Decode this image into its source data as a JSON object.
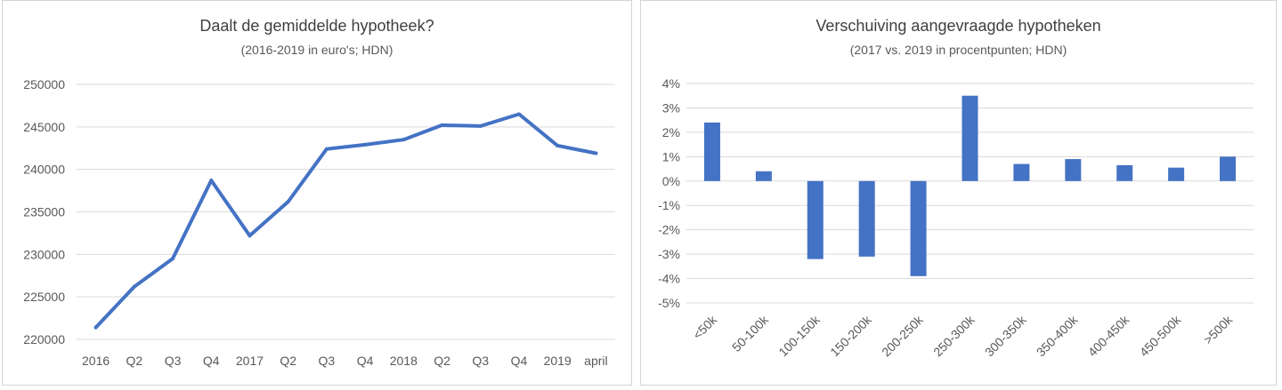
{
  "colors": {
    "series": "#4472c4",
    "grid": "#d9d9d9",
    "text": "#595959",
    "title": "#404040"
  },
  "chart_data": [
    {
      "type": "line",
      "title": "Daalt de gemiddelde hypotheek?",
      "subtitle": "(2016-2019 in euro's; HDN)",
      "categories": [
        "2016",
        "Q2",
        "Q3",
        "Q4",
        "2017",
        "Q2",
        "Q3",
        "Q4",
        "2018",
        "Q2",
        "Q3",
        "Q4",
        "2019",
        "april"
      ],
      "series": [
        {
          "values": [
            221400,
            226200,
            229500,
            238700,
            232200,
            236200,
            242400,
            242900,
            243500,
            245200,
            245100,
            246500,
            242800,
            241900
          ]
        }
      ],
      "ylim": [
        220000,
        250000
      ],
      "yticks": [
        220000,
        225000,
        230000,
        235000,
        240000,
        245000,
        250000
      ],
      "grid": true,
      "legend": "none"
    },
    {
      "type": "bar",
      "title": "Verschuiving aangevraagde hypotheken",
      "subtitle": "(2017 vs. 2019 in procentpunten; HDN)",
      "categories": [
        "<50k",
        "50-100k",
        "100-150k",
        "150-200k",
        "200-250k",
        "250-300k",
        "300-350k",
        "350-400k",
        "400-450k",
        "450-500k",
        ">500k"
      ],
      "series": [
        {
          "values": [
            2.4,
            0.4,
            -3.2,
            -3.1,
            -3.9,
            3.5,
            0.7,
            0.9,
            0.65,
            0.55,
            1.0
          ]
        }
      ],
      "ylim": [
        -5,
        4
      ],
      "yticks": [
        -5,
        -4,
        -3,
        -2,
        -1,
        0,
        1,
        2,
        3,
        4
      ],
      "ytick_suffix": "%",
      "grid": true,
      "legend": "none"
    }
  ]
}
